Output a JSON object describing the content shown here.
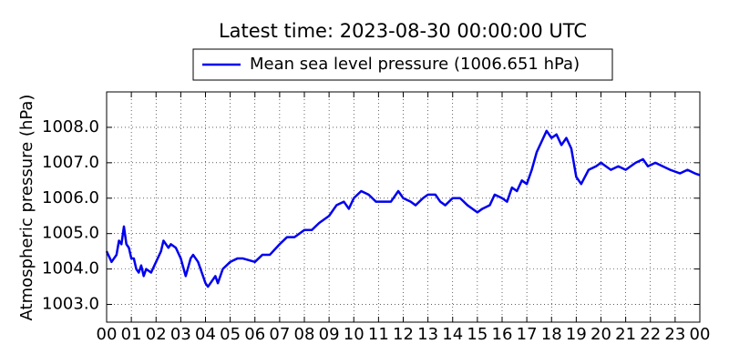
{
  "chart_data": {
    "type": "line",
    "title": "Latest time: 2023-08-30 00:00:00 UTC",
    "ylabel": "Atmospheric pressure (hPa)",
    "legend": "upper center",
    "grid": true,
    "xlim": [
      0,
      24
    ],
    "ylim": [
      1002.5,
      1009
    ],
    "xticks": [
      {
        "value": 0,
        "label": "00"
      },
      {
        "value": 1,
        "label": "01"
      },
      {
        "value": 2,
        "label": "02"
      },
      {
        "value": 3,
        "label": "03"
      },
      {
        "value": 4,
        "label": "04"
      },
      {
        "value": 5,
        "label": "05"
      },
      {
        "value": 6,
        "label": "06"
      },
      {
        "value": 7,
        "label": "07"
      },
      {
        "value": 8,
        "label": "08"
      },
      {
        "value": 9,
        "label": "09"
      },
      {
        "value": 10,
        "label": "10"
      },
      {
        "value": 11,
        "label": "11"
      },
      {
        "value": 12,
        "label": "12"
      },
      {
        "value": 13,
        "label": "13"
      },
      {
        "value": 14,
        "label": "14"
      },
      {
        "value": 15,
        "label": "15"
      },
      {
        "value": 16,
        "label": "16"
      },
      {
        "value": 17,
        "label": "17"
      },
      {
        "value": 18,
        "label": "18"
      },
      {
        "value": 19,
        "label": "19"
      },
      {
        "value": 20,
        "label": "20"
      },
      {
        "value": 21,
        "label": "21"
      },
      {
        "value": 22,
        "label": "22"
      },
      {
        "value": 23,
        "label": "23"
      },
      {
        "value": 24,
        "label": "00"
      }
    ],
    "yticks": [
      {
        "value": 1003,
        "label": "1003.0"
      },
      {
        "value": 1004,
        "label": "1004.0"
      },
      {
        "value": 1005,
        "label": "1005.0"
      },
      {
        "value": 1006,
        "label": "1006.0"
      },
      {
        "value": 1007,
        "label": "1007.0"
      },
      {
        "value": 1008,
        "label": "1008.0"
      }
    ],
    "x": [
      0,
      0.2,
      0.4,
      0.5,
      0.6,
      0.7,
      0.8,
      0.9,
      1.0,
      1.1,
      1.2,
      1.3,
      1.4,
      1.5,
      1.6,
      1.8,
      2.0,
      2.2,
      2.3,
      2.5,
      2.6,
      2.8,
      3.0,
      3.2,
      3.4,
      3.5,
      3.7,
      3.9,
      4.0,
      4.1,
      4.3,
      4.4,
      4.5,
      4.7,
      5.0,
      5.3,
      5.5,
      6.0,
      6.3,
      6.6,
      7.0,
      7.3,
      7.6,
      8.0,
      8.3,
      8.6,
      9.0,
      9.3,
      9.6,
      9.8,
      10.0,
      10.3,
      10.6,
      10.9,
      11.2,
      11.5,
      11.8,
      12.0,
      12.3,
      12.5,
      12.8,
      13.0,
      13.3,
      13.5,
      13.7,
      14.0,
      14.3,
      14.6,
      15.0,
      15.2,
      15.5,
      15.7,
      16.0,
      16.2,
      16.4,
      16.6,
      16.8,
      17.0,
      17.2,
      17.4,
      17.6,
      17.8,
      18.0,
      18.2,
      18.4,
      18.6,
      18.8,
      19.0,
      19.2,
      19.5,
      19.8,
      20.0,
      20.4,
      20.7,
      21.0,
      21.4,
      21.7,
      21.9,
      22.2,
      22.5,
      22.8,
      23.2,
      23.5,
      23.8,
      24.0
    ],
    "series": [
      {
        "name": "Mean sea level pressure (1006.651 hPa)",
        "color": "#0000ee",
        "values": [
          1004.5,
          1004.2,
          1004.4,
          1004.8,
          1004.7,
          1005.2,
          1004.7,
          1004.6,
          1004.3,
          1004.3,
          1004.0,
          1003.9,
          1004.1,
          1003.8,
          1004.0,
          1003.9,
          1004.2,
          1004.5,
          1004.8,
          1004.6,
          1004.7,
          1004.6,
          1004.3,
          1003.8,
          1004.3,
          1004.4,
          1004.2,
          1003.8,
          1003.6,
          1003.5,
          1003.7,
          1003.8,
          1003.6,
          1004.0,
          1004.2,
          1004.3,
          1004.3,
          1004.2,
          1004.4,
          1004.4,
          1004.7,
          1004.9,
          1004.9,
          1005.1,
          1005.1,
          1005.3,
          1005.5,
          1005.8,
          1005.9,
          1005.7,
          1006.0,
          1006.2,
          1006.1,
          1005.9,
          1005.9,
          1005.9,
          1006.2,
          1006.0,
          1005.9,
          1005.8,
          1006.0,
          1006.1,
          1006.1,
          1005.9,
          1005.8,
          1006.0,
          1006.0,
          1005.8,
          1005.6,
          1005.7,
          1005.8,
          1006.1,
          1006.0,
          1005.9,
          1006.3,
          1006.2,
          1006.5,
          1006.4,
          1006.8,
          1007.3,
          1007.6,
          1007.9,
          1007.7,
          1007.8,
          1007.5,
          1007.7,
          1007.4,
          1006.6,
          1006.4,
          1006.8,
          1006.9,
          1007.0,
          1006.8,
          1006.9,
          1006.8,
          1007.0,
          1007.1,
          1006.9,
          1007.0,
          1006.9,
          1006.8,
          1006.7,
          1006.8,
          1006.7,
          1006.65
        ]
      }
    ]
  }
}
